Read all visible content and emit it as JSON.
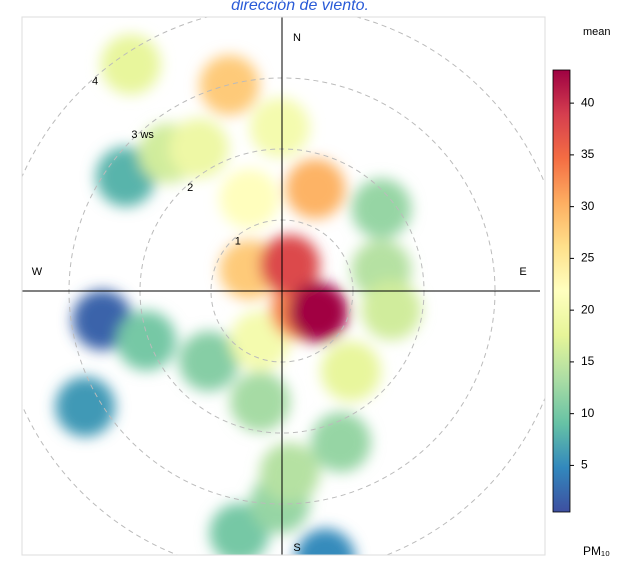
{
  "chart_data": {
    "type": "polar",
    "title": "dirección de viento.",
    "legend_title": "mean",
    "legend_unit": "PM₁₀",
    "directions": [
      "N",
      "E",
      "S",
      "W"
    ],
    "rticks": [
      1,
      2,
      {
        "value": 3,
        "label": "3 ws"
      },
      4
    ],
    "u": [
      -2.53,
      -2.77,
      0.61,
      -2.2,
      -1.91,
      -0.6,
      -1.03,
      -0.03,
      0.83,
      1.4,
      -0.31,
      0.11,
      1.4,
      1.54,
      -1.6,
      -2.13,
      0.97,
      -1.17,
      -0.31,
      -0.03,
      -0.46,
      -0.74,
      -0.46,
      0.47,
      0.26,
      0.11,
      0.51
    ],
    "v": [
      -0.41,
      -1.63,
      -3.77,
      1.61,
      -0.7,
      -3.41,
      -0.99,
      -2.99,
      -2.13,
      1.16,
      -1.56,
      -2.56,
      0.3,
      -0.27,
      1.94,
      3.19,
      -1.13,
      2.01,
      -0.7,
      2.3,
      1.3,
      2.9,
      0.3,
      1.44,
      -0.27,
      0.37,
      -0.3
    ],
    "values": [
      2,
      6,
      5,
      8,
      10,
      10,
      11,
      12,
      12,
      12,
      13,
      14,
      14,
      16,
      16,
      18,
      18,
      19,
      20,
      20,
      22,
      28,
      28,
      30,
      33,
      38,
      43
    ],
    "clim": [
      0.5,
      43.2
    ],
    "cticks": [
      5,
      10,
      15,
      20,
      25,
      30,
      35,
      40
    ],
    "colorscale": [
      "#3E4FA0",
      "#3288BD",
      "#66C2A5",
      "#ABDDA4",
      "#E6F598",
      "#FFFFBF",
      "#FEE08B",
      "#FDAE61",
      "#F46D43",
      "#D53E4F",
      "#9E0142"
    ]
  }
}
